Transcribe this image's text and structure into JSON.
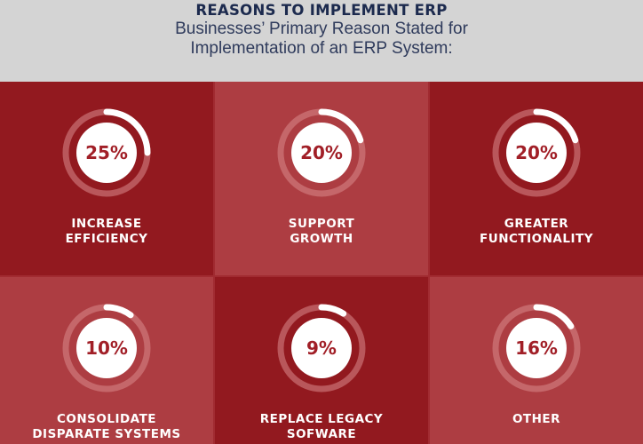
{
  "header": {
    "title": "REASONS TO IMPLEMENT ERP",
    "subtitle_line1": "Businesses’ Primary Reason Stated for",
    "subtitle_line2": "Implementation of an ERP System:"
  },
  "colors": {
    "header_bg": "#d4d4d4",
    "tile_dark": "#92191f",
    "tile_mid": "#a12b31",
    "tile_light": "#ad3d42",
    "ring_progress": "#ffffff",
    "ring_track": "#d98a8d",
    "text": "#ffffff",
    "percent_text": "#a11f27"
  },
  "chart_data": {
    "type": "progress-rings",
    "title": "REASONS TO IMPLEMENT ERP",
    "subtitle": "Businesses’ Primary Reason Stated for Implementation of an ERP System:",
    "items": [
      {
        "label_lines": [
          "INCREASE",
          "EFFICIENCY"
        ],
        "value": 25,
        "display": "25%"
      },
      {
        "label_lines": [
          "SUPPORT",
          "GROWTH"
        ],
        "value": 20,
        "display": "20%"
      },
      {
        "label_lines": [
          "GREATER",
          "FUNCTIONALITY"
        ],
        "value": 20,
        "display": "20%"
      },
      {
        "label_lines": [
          "CONSOLIDATE",
          "DISPARATE SYSTEMS"
        ],
        "value": 10,
        "display": "10%"
      },
      {
        "label_lines": [
          "REPLACE LEGACY",
          "SOFWARE"
        ],
        "value": 9,
        "display": "9%"
      },
      {
        "label_lines": [
          "OTHER"
        ],
        "value": 16,
        "display": "16%"
      }
    ]
  }
}
